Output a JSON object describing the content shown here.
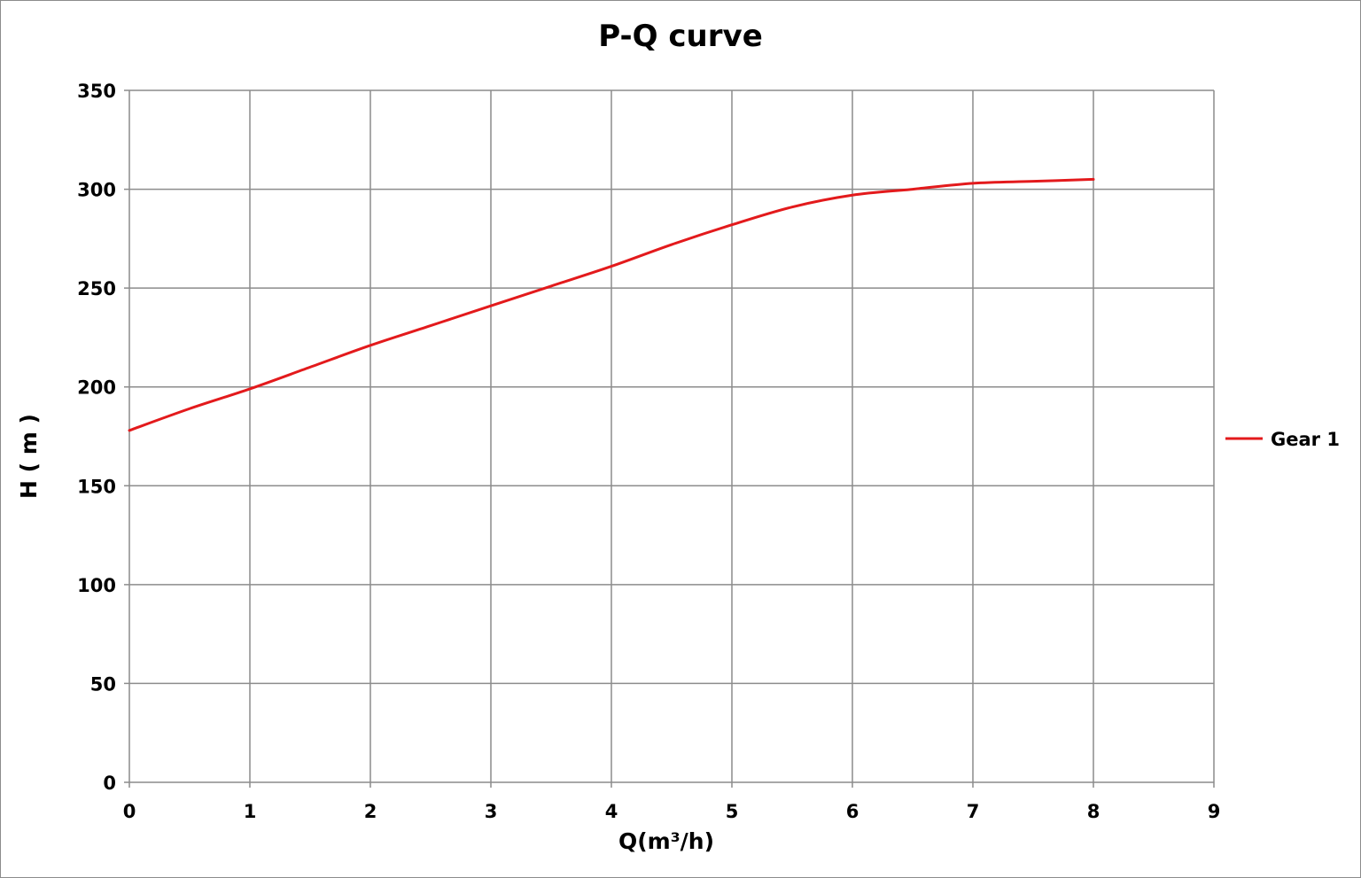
{
  "chart_data": {
    "type": "line",
    "title": "P-Q  curve",
    "xlabel": "Q(m³/h)",
    "ylabel": "H ( m )",
    "xlim": [
      0,
      9
    ],
    "ylim": [
      0,
      350
    ],
    "x_ticks": [
      "0",
      "1",
      "2",
      "3",
      "4",
      "5",
      "6",
      "7",
      "8",
      "9"
    ],
    "y_ticks": [
      "0",
      "50",
      "100",
      "150",
      "200",
      "250",
      "300",
      "350"
    ],
    "grid": true,
    "legend_position": "right",
    "series": [
      {
        "name": "Gear 1",
        "color": "#e31a1c",
        "x": [
          0,
          0.5,
          1,
          1.5,
          2,
          2.5,
          3,
          3.5,
          4,
          4.5,
          5,
          5.5,
          6,
          6.5,
          7,
          7.5,
          8
        ],
        "y": [
          178,
          189,
          199,
          210,
          221,
          231,
          241,
          251,
          261,
          272,
          282,
          291,
          297,
          300,
          303,
          304,
          305
        ]
      }
    ]
  }
}
